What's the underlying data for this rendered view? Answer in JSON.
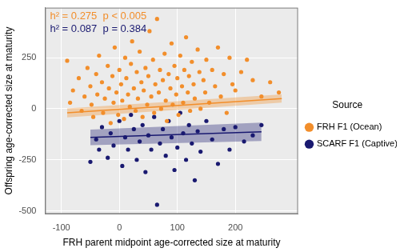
{
  "chart_data": {
    "type": "scatter",
    "x_label": "FRH parent midpoint age-corrected size at maturity",
    "y_label": "Offspring age-corrected size at maturity",
    "legend_title": "Source",
    "legend": "right",
    "grid": true,
    "xlim": [
      -128,
      308
    ],
    "xticks": [
      -100,
      0,
      100,
      200
    ],
    "ylim": [
      -515,
      495
    ],
    "yticks": [
      -500,
      -250,
      0,
      250
    ],
    "annotations": [
      {
        "text": "h² = 0.275  p < 0.005",
        "color": "#f28e2b"
      },
      {
        "text": "h² = 0.087  p = 0.384",
        "color": "#191970"
      }
    ],
    "series": [
      {
        "name": "FRH F1 (Ocean)",
        "color": "#f28e2b",
        "marker": "circle",
        "x": [
          -90,
          -85,
          -80,
          -70,
          -65,
          -60,
          -55,
          -50,
          -48,
          -45,
          -40,
          -38,
          -35,
          -30,
          -28,
          -25,
          -20,
          -18,
          -15,
          -12,
          -10,
          -8,
          -5,
          -2,
          0,
          3,
          5,
          8,
          10,
          12,
          15,
          18,
          20,
          22,
          25,
          28,
          30,
          32,
          35,
          38,
          40,
          42,
          45,
          48,
          50,
          52,
          55,
          58,
          60,
          62,
          65,
          68,
          70,
          72,
          75,
          78,
          80,
          82,
          85,
          88,
          90,
          92,
          95,
          98,
          100,
          102,
          105,
          108,
          110,
          112,
          115,
          118,
          120,
          122,
          125,
          128,
          130,
          135,
          138,
          140,
          145,
          148,
          150,
          155,
          160,
          165,
          170,
          175,
          180,
          185,
          190,
          195,
          200,
          210,
          220,
          230,
          245,
          260,
          275
        ],
        "values": [
          235,
          30,
          90,
          150,
          -10,
          60,
          200,
          110,
          20,
          -40,
          170,
          70,
          260,
          130,
          -20,
          50,
          210,
          100,
          -70,
          160,
          30,
          300,
          80,
          -30,
          190,
          120,
          40,
          -50,
          250,
          150,
          70,
          10,
          220,
          330,
          100,
          -10,
          180,
          50,
          280,
          130,
          -40,
          90,
          200,
          20,
          160,
          380,
          60,
          240,
          -20,
          120,
          440,
          80,
          190,
          0,
          140,
          270,
          40,
          -60,
          170,
          100,
          320,
          20,
          210,
          70,
          150,
          -30,
          260,
          110,
          30,
          190,
          350,
          80,
          160,
          -10,
          230,
          120,
          50,
          290,
          180,
          0,
          140,
          80,
          240,
          30,
          190,
          110,
          300,
          60,
          170,
          -20,
          250,
          120,
          90,
          180,
          240,
          140,
          60,
          130,
          80
        ],
        "fit": {
          "x": [
            -90,
            280
          ],
          "y": [
            -20,
            50
          ],
          "lower": [
            -42,
            30
          ],
          "upper": [
            2,
            70
          ]
        }
      },
      {
        "name": "SCARF F1 (Captive)",
        "color": "#191970",
        "marker": "circle",
        "x": [
          -50,
          -40,
          -35,
          -30,
          -20,
          -15,
          -10,
          0,
          5,
          10,
          15,
          20,
          25,
          30,
          35,
          40,
          45,
          50,
          55,
          60,
          65,
          70,
          75,
          80,
          85,
          90,
          95,
          100,
          105,
          110,
          115,
          120,
          125,
          130,
          135,
          140,
          150,
          160,
          170,
          180,
          190,
          200,
          215,
          230,
          245
        ],
        "values": [
          -260,
          -150,
          -200,
          -90,
          -240,
          -120,
          -180,
          -60,
          -280,
          -140,
          -200,
          -30,
          -100,
          -250,
          -160,
          -80,
          -310,
          -130,
          -200,
          -40,
          -470,
          -170,
          -100,
          -230,
          -60,
          -140,
          -300,
          -190,
          -20,
          -120,
          -250,
          -80,
          -170,
          -350,
          -110,
          -210,
          -60,
          -150,
          -270,
          -100,
          -200,
          -90,
          -160,
          -130,
          -80
        ],
        "fit": {
          "x": [
            -50,
            245
          ],
          "y": [
            -140,
            -113
          ],
          "lower": [
            -178,
            -158
          ],
          "upper": [
            -102,
            -68
          ]
        }
      }
    ]
  }
}
